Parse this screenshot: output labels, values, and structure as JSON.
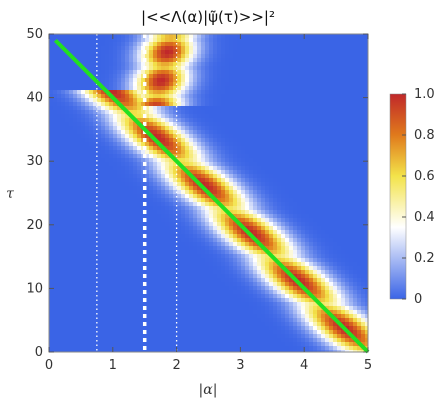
{
  "chart_data": {
    "type": "heatmap",
    "title": "|<<Λ(α)|ψ̃(τ)>>|²",
    "xlabel": "|α|",
    "ylabel": "τ",
    "xlim": [
      0,
      5
    ],
    "ylim": [
      0,
      50
    ],
    "x_ticks": [
      "0",
      "1",
      "2",
      "3",
      "4",
      "5"
    ],
    "y_ticks": [
      "0",
      "10",
      "20",
      "30",
      "40",
      "50"
    ],
    "colorbar": {
      "range": [
        0,
        1.0
      ],
      "ticks": [
        "0",
        "0.2",
        "0.4",
        "0.6",
        "0.8",
        "1.0"
      ],
      "colors": [
        "#3a64e6",
        "#ffffff",
        "#f3e34a",
        "#e07a1c",
        "#c0282a"
      ]
    },
    "ridge": {
      "description": "diagonal ridge from (|α|≈1, τ≈40) down to (|α|≈5, τ≈0)",
      "upper_blob_x": [
        1.45,
        2.35
      ],
      "upper_blob_tau": [
        40,
        49
      ]
    },
    "green_line": {
      "color": "#22e022",
      "x": [
        0.1,
        5.0
      ],
      "y": [
        49,
        0
      ]
    },
    "vertical_lines": [
      {
        "x": 0.75,
        "style": "dotted",
        "color": "#ffffff"
      },
      {
        "x": 1.5,
        "style": "thick-dotted",
        "color": "#ffffff"
      },
      {
        "x": 2.0,
        "style": "dotted",
        "color": "#ffffff"
      }
    ],
    "grid": false
  }
}
